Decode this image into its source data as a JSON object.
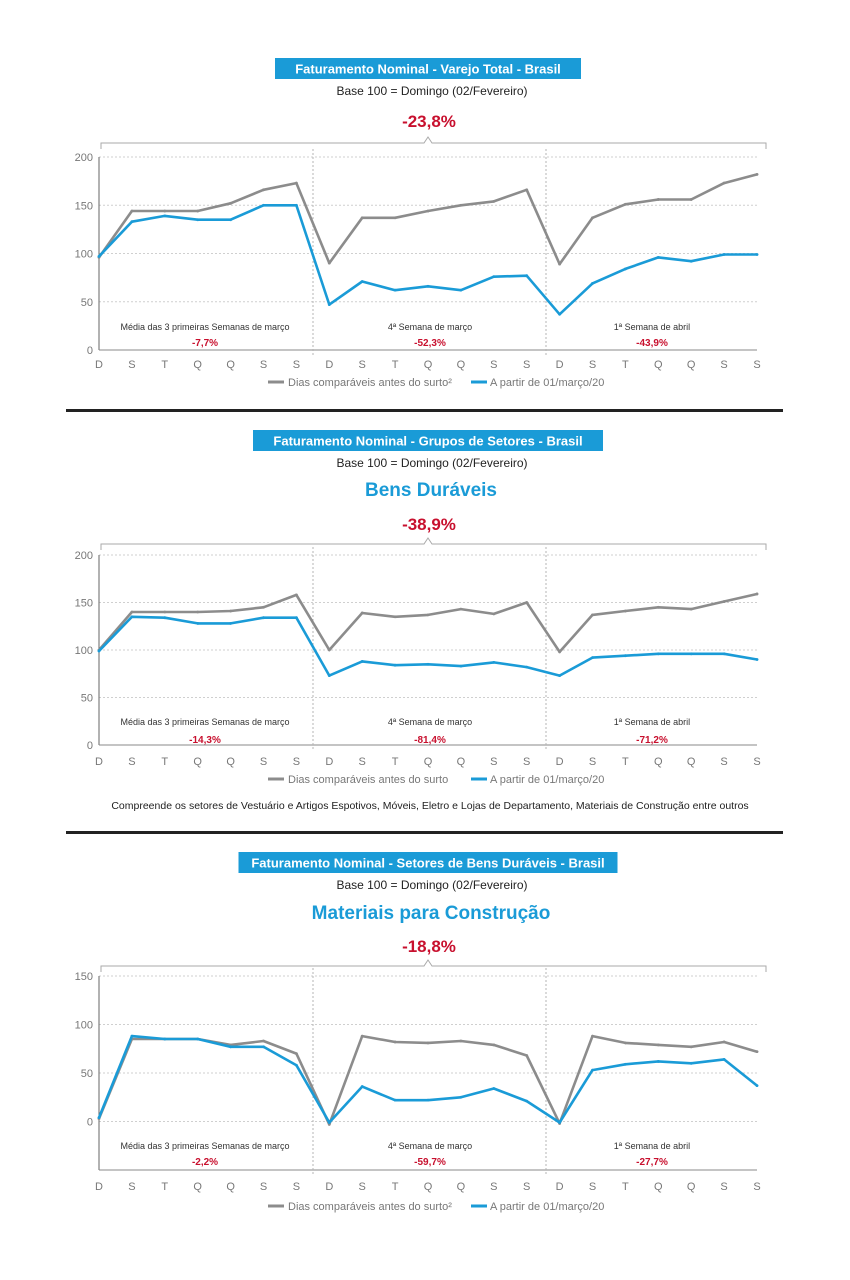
{
  "colors": {
    "gray_series": "#8c8c8c",
    "blue_series": "#1a9bd7",
    "title_bg": "#1a9bd7",
    "accent_red": "#c8102e",
    "rule": "#222222"
  },
  "chart_data": [
    {
      "type": "line",
      "title": "Faturamento Nominal - Varejo Total - Brasil",
      "subtitle": "Base 100 = Domingo (02/Fevereiro)",
      "sector": "",
      "headline": "-23,8%",
      "categories": [
        "D",
        "S",
        "T",
        "Q",
        "Q",
        "S",
        "S",
        "D",
        "S",
        "T",
        "Q",
        "Q",
        "S",
        "S",
        "D",
        "S",
        "T",
        "Q",
        "Q",
        "S",
        "S"
      ],
      "yticks": [
        0,
        50,
        100,
        150,
        200
      ],
      "ylim": [
        0,
        200
      ],
      "grid": true,
      "legend_position": "bottom",
      "series": [
        {
          "name": "Dias comparáveis antes do surto²",
          "values": [
            96,
            144,
            144,
            144,
            152,
            166,
            173,
            90,
            137,
            137,
            144,
            150,
            154,
            166,
            89,
            137,
            151,
            156,
            156,
            173,
            182
          ]
        },
        {
          "name": "A partir de 01/março/20",
          "values": [
            97,
            133,
            139,
            135,
            135,
            150,
            150,
            47,
            71,
            62,
            66,
            62,
            76,
            77,
            37,
            69,
            84,
            96,
            92,
            99,
            99
          ]
        }
      ],
      "annotations": [
        {
          "label": "Média das 3 primeiras Semanas de março",
          "value": "-7,7%"
        },
        {
          "label": "4ª Semana de março",
          "value": "-52,3%"
        },
        {
          "label": "1ª Semana de abril",
          "value": "-43,9%"
        }
      ],
      "note": ""
    },
    {
      "type": "line",
      "title": "Faturamento Nominal - Grupos de Setores - Brasil",
      "subtitle": "Base 100 = Domingo (02/Fevereiro)",
      "sector": "Bens Duráveis",
      "headline": "-38,9%",
      "categories": [
        "D",
        "S",
        "T",
        "Q",
        "Q",
        "S",
        "S",
        "D",
        "S",
        "T",
        "Q",
        "Q",
        "S",
        "S",
        "D",
        "S",
        "T",
        "Q",
        "Q",
        "S",
        "S"
      ],
      "yticks": [
        0,
        50,
        100,
        150,
        200
      ],
      "ylim": [
        0,
        200
      ],
      "grid": true,
      "legend_position": "bottom",
      "series": [
        {
          "name": "Dias comparáveis antes do surto",
          "values": [
            100,
            140,
            140,
            140,
            141,
            145,
            158,
            100,
            139,
            135,
            137,
            143,
            138,
            150,
            98,
            137,
            141,
            145,
            143,
            151,
            159
          ]
        },
        {
          "name": "A partir de 01/março/20",
          "values": [
            99,
            135,
            134,
            128,
            128,
            134,
            134,
            73,
            88,
            84,
            85,
            83,
            87,
            82,
            73,
            92,
            94,
            96,
            96,
            96,
            90
          ]
        }
      ],
      "annotations": [
        {
          "label": "Média das 3 primeiras Semanas de março",
          "value": "-14,3%"
        },
        {
          "label": "4ª Semana de março",
          "value": "-81,4%"
        },
        {
          "label": "1ª Semana de abril",
          "value": "-71,2%"
        }
      ],
      "note": "Compreende os setores de Vestuário e Artigos Espotivos, Móveis, Eletro e Lojas de Departamento, Materiais de Construção entre outros"
    },
    {
      "type": "line",
      "title": "Faturamento Nominal - Setores de Bens Duráveis - Brasil",
      "subtitle": "Base 100 = Domingo (02/Fevereiro)",
      "sector": "Materiais para Construção",
      "headline": "-18,8%",
      "categories": [
        "D",
        "S",
        "T",
        "Q",
        "Q",
        "S",
        "S",
        "D",
        "S",
        "T",
        "Q",
        "Q",
        "S",
        "S",
        "D",
        "S",
        "T",
        "Q",
        "Q",
        "S",
        "S"
      ],
      "yticks": [
        0,
        50,
        100,
        150
      ],
      "ylim": [
        -50,
        150
      ],
      "grid": true,
      "legend_position": "bottom",
      "series": [
        {
          "name": "Dias comparáveis antes do surto²",
          "values": [
            3,
            85,
            85,
            85,
            79,
            83,
            70,
            -3,
            88,
            82,
            81,
            83,
            79,
            68,
            -2,
            88,
            81,
            79,
            77,
            82,
            72
          ]
        },
        {
          "name": "A partir de 01/março/20",
          "values": [
            4,
            88,
            85,
            85,
            77,
            77,
            58,
            -1,
            36,
            22,
            22,
            25,
            34,
            21,
            -1,
            53,
            59,
            62,
            60,
            64,
            37
          ]
        }
      ],
      "annotations": [
        {
          "label": "Média das 3 primeiras Semanas de março",
          "value": "-2,2%"
        },
        {
          "label": "4ª Semana de março",
          "value": "-59,7%"
        },
        {
          "label": "1ª Semana de abril",
          "value": "-27,7%"
        }
      ],
      "note": ""
    }
  ]
}
